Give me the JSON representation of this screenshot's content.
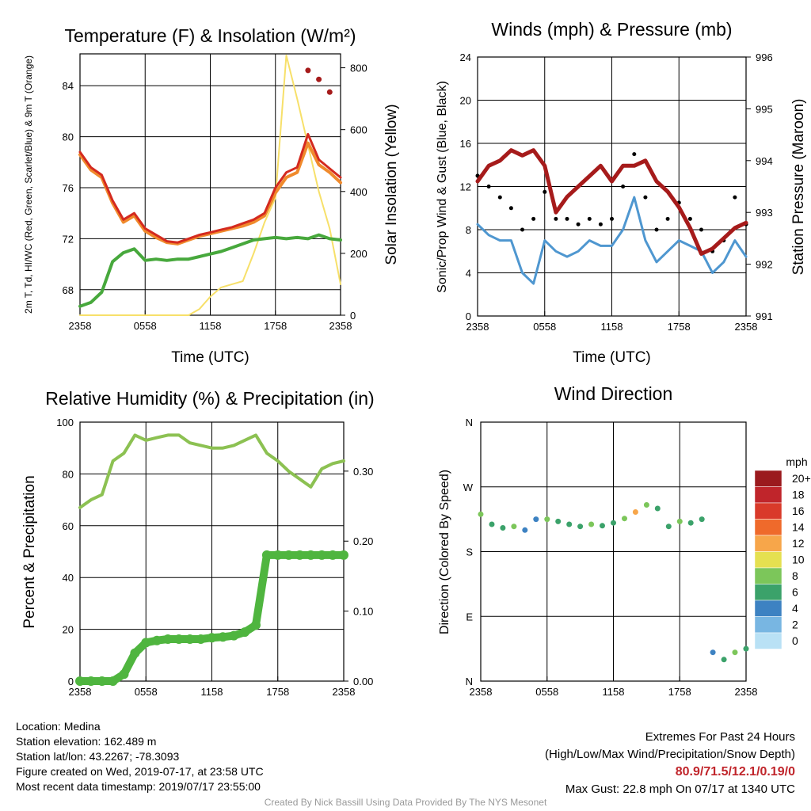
{
  "colors": {
    "temperature": "#d42a1f",
    "dewpoint": "#47a83c",
    "feelslike": "#f08a2c",
    "insolation": "#f7e06a",
    "pressure": "#a61b1b",
    "wind": "#4f97d0",
    "gust": "#000000",
    "rh": "#8cc152",
    "precip": "#4fb53f",
    "extremes": "#c0252b"
  },
  "time_ticks": [
    "2358",
    "0558",
    "1158",
    "1758",
    "2358"
  ],
  "footer": {
    "location": "Location: Medina",
    "elevation": "Station elevation: 162.489 m",
    "latlon": "Station lat/lon: 43.2267; -78.3093",
    "created": "Figure created on Wed, 2019-07-17, at 23:58 UTC",
    "recent": "Most recent data timestamp: 2019/07/17 23:55:00",
    "extremes_title": "Extremes For Past 24 Hours",
    "extremes_sub": "(High/Low/Max Wind/Precipitation/Snow Depth)",
    "extremes_values": "80.9/71.5/12.1/0.19/0",
    "max_gust": "Max Gust: 22.8 mph On 07/17 at 1340 UTC",
    "credit": "Created By Nick Bassill Using Data Provided By The NYS Mesonet"
  },
  "chart_data": [
    {
      "type": "line",
      "title": "Temperature (F) & Insolation (W/m²)",
      "xlabel": "Time (UTC)",
      "ylabel": "2m T, Td, HI/WC (Red, Green, Scarlet/Blue) & 9m T (Orange)",
      "y2label": "Solar Insolation (Yellow)",
      "ylim": [
        66,
        86.5
      ],
      "y2lim": [
        0,
        845
      ],
      "yticks": [
        68,
        72,
        76,
        80,
        84
      ],
      "y2ticks": [
        0,
        200,
        400,
        600,
        800
      ],
      "x_hours": [
        0,
        1,
        2,
        3,
        4,
        5,
        6,
        7,
        8,
        9,
        10,
        11,
        12,
        13,
        14,
        15,
        16,
        17,
        18,
        19,
        20,
        21,
        22,
        23,
        24
      ],
      "series": [
        {
          "name": "2m T",
          "values": [
            78.8,
            77.6,
            77.0,
            75.0,
            73.5,
            74.0,
            72.8,
            72.3,
            71.8,
            71.7,
            72.0,
            72.3,
            72.5,
            72.7,
            72.9,
            73.2,
            73.5,
            74.0,
            76.0,
            77.2,
            77.6,
            80.2,
            78.2,
            77.5,
            76.8
          ]
        },
        {
          "name": "9m T",
          "values": [
            78.6,
            77.4,
            76.8,
            74.8,
            73.3,
            73.8,
            72.6,
            72.1,
            71.7,
            71.6,
            71.9,
            72.2,
            72.4,
            72.6,
            72.8,
            73.0,
            73.3,
            73.8,
            75.6,
            76.8,
            77.2,
            79.5,
            77.8,
            77.2,
            76.4
          ]
        },
        {
          "name": "Td",
          "values": [
            66.7,
            67.0,
            67.8,
            70.2,
            70.9,
            71.2,
            70.3,
            70.4,
            70.3,
            70.4,
            70.4,
            70.6,
            70.8,
            71.0,
            71.3,
            71.6,
            71.9,
            72.0,
            72.1,
            72.0,
            72.1,
            72.0,
            72.3,
            72.0,
            71.9
          ]
        },
        {
          "name": "HI",
          "values": [
            null,
            null,
            null,
            null,
            null,
            null,
            null,
            null,
            null,
            null,
            null,
            null,
            null,
            null,
            null,
            null,
            null,
            null,
            null,
            null,
            null,
            85.2,
            84.5,
            83.5,
            null
          ]
        },
        {
          "name": "Insolation",
          "values": [
            0,
            0,
            0,
            0,
            0,
            0,
            0,
            0,
            0,
            0,
            0,
            20,
            60,
            90,
            100,
            110,
            200,
            300,
            380,
            840,
            700,
            550,
            400,
            280,
            100
          ]
        }
      ]
    },
    {
      "type": "line",
      "title": "Winds (mph) & Pressure (mb)",
      "xlabel": "Time (UTC)",
      "ylabel": "Sonic/Prop Wind & Gust (Blue, Black)",
      "y2label": "Station Pressure (Maroon)",
      "ylim": [
        0,
        24
      ],
      "y2lim": [
        991,
        996
      ],
      "yticks": [
        0,
        4,
        8,
        12,
        16,
        20,
        24
      ],
      "y2ticks": [
        991,
        992,
        993,
        994,
        995,
        996
      ],
      "x_hours": [
        0,
        1,
        2,
        3,
        4,
        5,
        6,
        7,
        8,
        9,
        10,
        11,
        12,
        13,
        14,
        15,
        16,
        17,
        18,
        19,
        20,
        21,
        22,
        23,
        24
      ],
      "series": [
        {
          "name": "Wind",
          "values": [
            8.5,
            7.5,
            7.0,
            7.0,
            4.0,
            3.0,
            7.0,
            6.0,
            5.5,
            6.0,
            7.0,
            6.5,
            6.5,
            8.0,
            11.0,
            7.0,
            5.0,
            6.0,
            7.0,
            6.5,
            6.0,
            4.0,
            5.0,
            7.0,
            5.5
          ]
        },
        {
          "name": "Gust",
          "values": [
            13.0,
            12.0,
            11.0,
            10.0,
            8.0,
            9.0,
            11.5,
            9.0,
            9.0,
            8.5,
            9.0,
            8.5,
            9.0,
            12.0,
            15.0,
            11.0,
            8.0,
            9.0,
            10.5,
            9.0,
            8.0,
            6.0,
            7.0,
            11.0,
            8.5
          ]
        },
        {
          "name": "Pressure",
          "values": [
            993.6,
            993.9,
            994.0,
            994.2,
            994.1,
            994.2,
            993.9,
            993.0,
            993.3,
            993.5,
            993.7,
            993.9,
            993.6,
            993.9,
            993.9,
            994.0,
            993.6,
            993.4,
            993.1,
            992.7,
            992.2,
            992.3,
            992.5,
            992.7,
            992.8
          ]
        }
      ]
    },
    {
      "type": "line",
      "title": "Relative Humidity (%) & Precipitation (in)",
      "xlabel": "",
      "ylabel": "Percent & Precipitation",
      "ylim": [
        0,
        100
      ],
      "y2lim": [
        0,
        0.37
      ],
      "yticks": [
        0,
        20,
        40,
        60,
        80,
        100
      ],
      "y2ticks": [
        0.0,
        0.1,
        0.2,
        0.3
      ],
      "y2ticklabels": [
        "0.00",
        "0.10",
        "0.20",
        "0.30"
      ],
      "x_hours": [
        0,
        1,
        2,
        3,
        4,
        5,
        6,
        7,
        8,
        9,
        10,
        11,
        12,
        13,
        14,
        15,
        16,
        17,
        18,
        19,
        20,
        21,
        22,
        23,
        24
      ],
      "series": [
        {
          "name": "RH",
          "values": [
            67,
            70,
            72,
            85,
            88,
            95,
            93,
            94,
            95,
            95,
            92,
            91,
            90,
            90,
            91,
            93,
            95,
            88,
            85,
            81,
            78,
            75,
            82,
            84,
            85
          ]
        },
        {
          "name": "Precip",
          "values": [
            0.0,
            0.0,
            0.0,
            0.0,
            0.01,
            0.04,
            0.055,
            0.058,
            0.06,
            0.06,
            0.06,
            0.06,
            0.062,
            0.063,
            0.065,
            0.07,
            0.08,
            0.18,
            0.18,
            0.18,
            0.18,
            0.18,
            0.18,
            0.18,
            0.18
          ]
        }
      ]
    },
    {
      "type": "scatter",
      "title": "Wind Direction",
      "xlabel": "",
      "ylabel": "Direction (Colored By Speed)",
      "yticks": [
        "N",
        "E",
        "S",
        "W",
        "N"
      ],
      "colorbar_title": "mph",
      "colorbar_labels": [
        "20+",
        "18",
        "16",
        "14",
        "12",
        "10",
        "8",
        "6",
        "4",
        "2",
        "0"
      ],
      "colorbar_colors": [
        "#9b1a1e",
        "#c0252b",
        "#d93a2a",
        "#ef6a2b",
        "#f7a64a",
        "#e5e050",
        "#7cc65a",
        "#3ba26a",
        "#3d82c2",
        "#78b6e2",
        "#b9e1f5"
      ],
      "x_hours": [
        0,
        1,
        2,
        3,
        4,
        5,
        6,
        7,
        8,
        9,
        10,
        11,
        12,
        13,
        14,
        15,
        16,
        17,
        18,
        19,
        20,
        21,
        22,
        23,
        24
      ],
      "values_deg": [
        232,
        218,
        213,
        215,
        210,
        225,
        225,
        222,
        218,
        215,
        218,
        216,
        220,
        226,
        235,
        245,
        240,
        215,
        222,
        220,
        225,
        40,
        30,
        40,
        45
      ],
      "speeds_mph": [
        7,
        6,
        6,
        7,
        4,
        3,
        8,
        6,
        5,
        6,
        7,
        6,
        6,
        8,
        11,
        7,
        5,
        6,
        7,
        6,
        5,
        4,
        6,
        8,
        6
      ]
    }
  ]
}
